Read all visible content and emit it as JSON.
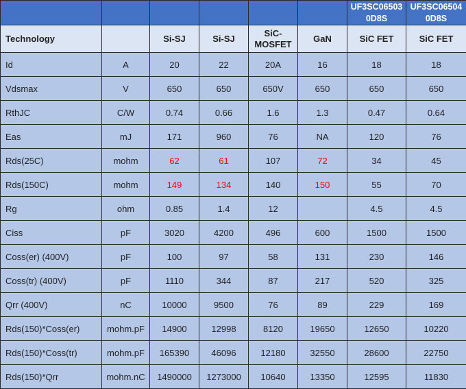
{
  "colors": {
    "header": "#4472c4",
    "technology_row": "#dce5f3",
    "data_rows": "#b4c7e7",
    "highlight": "#ff0000"
  },
  "header": [
    "",
    "",
    "",
    "",
    "",
    "",
    "UF3SC06503 0D8S",
    "UF3SC06504 0D8S"
  ],
  "technology": [
    "Technology",
    "",
    "Si-SJ",
    "Si-SJ",
    "SiC- MOSFET",
    "GaN",
    "SiC FET",
    "SiC FET"
  ],
  "rows": [
    {
      "cells": [
        "Id",
        "A",
        "20",
        "22",
        "20A",
        "16",
        "18",
        "18"
      ],
      "red": []
    },
    {
      "cells": [
        "Vdsmax",
        "V",
        "650",
        "650",
        "650V",
        "650",
        "650",
        "650"
      ],
      "red": []
    },
    {
      "cells": [
        "RthJC",
        "C/W",
        "0.74",
        "0.66",
        "1.6",
        "1.3",
        "0.47",
        "0.64"
      ],
      "red": []
    },
    {
      "cells": [
        "Eas",
        "mJ",
        "171",
        "960",
        "76",
        "NA",
        "120",
        "76"
      ],
      "red": []
    },
    {
      "cells": [
        "Rds(25C)",
        "mohm",
        "62",
        "61",
        "107",
        "72",
        "34",
        "45"
      ],
      "red": [
        2,
        3,
        5
      ]
    },
    {
      "cells": [
        "Rds(150C)",
        "mohm",
        "149",
        "134",
        "140",
        "150",
        "55",
        "70"
      ],
      "red": [
        2,
        3,
        5
      ]
    },
    {
      "cells": [
        "Rg",
        "ohm",
        "0.85",
        "1.4",
        "12",
        "",
        "4.5",
        "4.5"
      ],
      "red": []
    },
    {
      "cells": [
        "Ciss",
        "pF",
        "3020",
        "4200",
        "496",
        "600",
        "1500",
        "1500"
      ],
      "red": []
    },
    {
      "cells": [
        "Coss(er) (400V)",
        "pF",
        "100",
        "97",
        "58",
        "131",
        "230",
        "146"
      ],
      "red": []
    },
    {
      "cells": [
        "Coss(tr) (400V)",
        "pF",
        "1110",
        "344",
        "87",
        "217",
        "520",
        "325"
      ],
      "red": []
    },
    {
      "cells": [
        "Qrr (400V)",
        "nC",
        "10000",
        "9500",
        "76",
        "89",
        "229",
        "169"
      ],
      "red": []
    },
    {
      "cells": [
        "Rds(150)*Coss(er)",
        "mohm.pF",
        "14900",
        "12998",
        "8120",
        "19650",
        "12650",
        "10220"
      ],
      "red": []
    },
    {
      "cells": [
        "Rds(150)*Coss(tr)",
        "mohm.pF",
        "165390",
        "46096",
        "12180",
        "32550",
        "28600",
        "22750"
      ],
      "red": []
    },
    {
      "cells": [
        "Rds(150)*Qrr",
        "mohm.nC",
        "1490000",
        "1273000",
        "10640",
        "13350",
        "12595",
        "11830"
      ],
      "red": []
    }
  ]
}
